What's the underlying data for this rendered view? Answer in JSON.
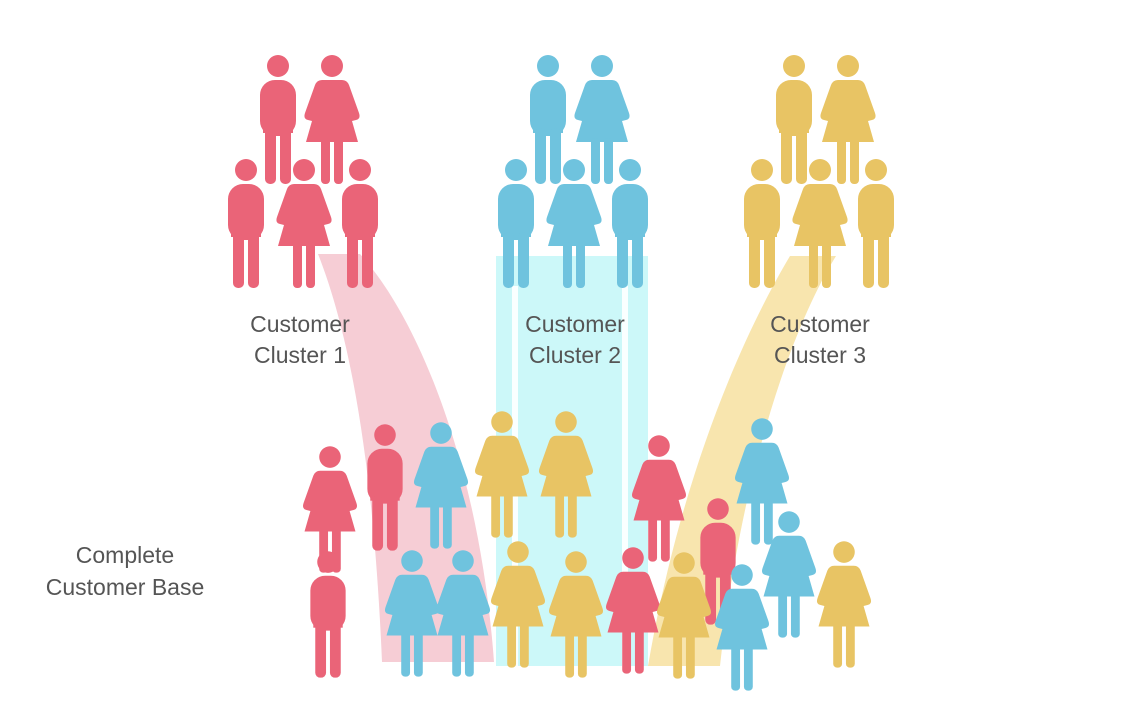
{
  "colors": {
    "red": "#EA6478",
    "blue": "#6FC3DE",
    "yellow": "#E8C464",
    "flow_red": "#F6CDD5",
    "flow_blue": "#CCF8F9",
    "flow_yellow": "#F8E5AE",
    "label_text": "#555555"
  },
  "clusters": [
    {
      "label_line1": "Customer",
      "label_line2": "Cluster 1",
      "color": "red",
      "people": [
        "male",
        "female",
        "male",
        "female",
        "male"
      ]
    },
    {
      "label_line1": "Customer",
      "label_line2": "Cluster 2",
      "color": "blue",
      "people": [
        "male",
        "female",
        "male",
        "female",
        "male"
      ]
    },
    {
      "label_line1": "Customer",
      "label_line2": "Cluster 3",
      "color": "yellow",
      "people": [
        "male",
        "female",
        "male",
        "female",
        "male"
      ]
    }
  ],
  "base": {
    "label_line1": "Complete",
    "label_line2": "Customer Base",
    "people": [
      {
        "gender": "female",
        "color": "red"
      },
      {
        "gender": "male",
        "color": "red"
      },
      {
        "gender": "female",
        "color": "blue"
      },
      {
        "gender": "female",
        "color": "yellow"
      },
      {
        "gender": "female",
        "color": "yellow"
      },
      {
        "gender": "female",
        "color": "red"
      },
      {
        "gender": "female",
        "color": "blue"
      },
      {
        "gender": "male",
        "color": "red"
      },
      {
        "gender": "female",
        "color": "blue"
      },
      {
        "gender": "female",
        "color": "blue"
      },
      {
        "gender": "female",
        "color": "yellow"
      },
      {
        "gender": "male",
        "color": "red"
      },
      {
        "gender": "female",
        "color": "yellow"
      },
      {
        "gender": "female",
        "color": "red"
      },
      {
        "gender": "female",
        "color": "blue"
      },
      {
        "gender": "female",
        "color": "yellow"
      },
      {
        "gender": "female",
        "color": "blue"
      },
      {
        "gender": "female",
        "color": "yellow"
      }
    ]
  }
}
